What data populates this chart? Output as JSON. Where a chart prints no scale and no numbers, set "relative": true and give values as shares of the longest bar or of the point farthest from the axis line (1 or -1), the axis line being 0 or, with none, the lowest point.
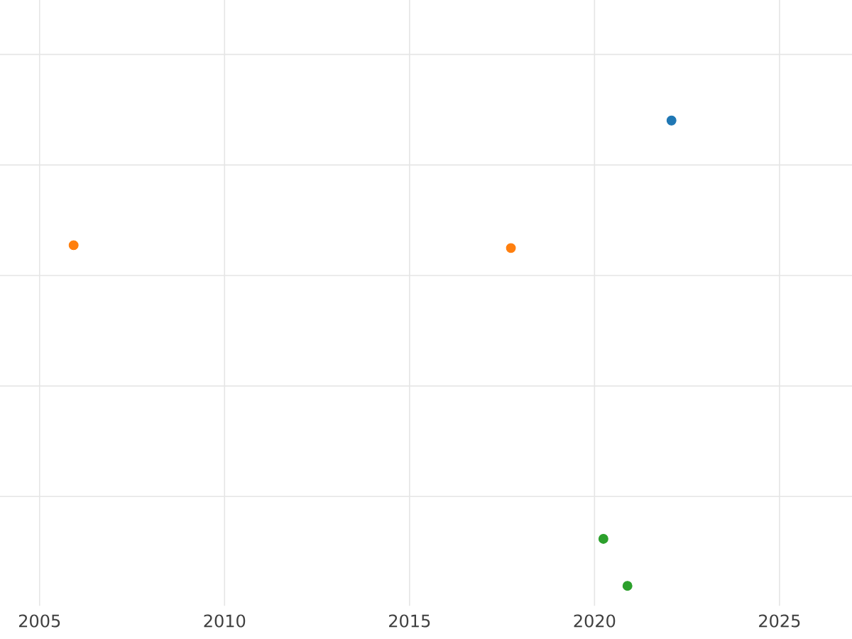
{
  "chart_data": {
    "type": "scatter",
    "relative": true,
    "marker": "circle",
    "grid": true,
    "xlim": [
      2003.93,
      2026.96
    ],
    "xticks": [
      2005,
      2010,
      2015,
      2020,
      2025
    ],
    "series": [
      {
        "color": "#1f77b4",
        "x": [
          2022.08
        ],
        "values": [
          1
        ]
      },
      {
        "color": "#ff7f0e",
        "x": [
          2005.92,
          2017.74
        ],
        "values": [
          0.732,
          0.726
        ]
      },
      {
        "color": "#2ca02c",
        "x": [
          2020.24,
          2020.89
        ],
        "values": [
          0.101,
          0
        ]
      }
    ]
  }
}
